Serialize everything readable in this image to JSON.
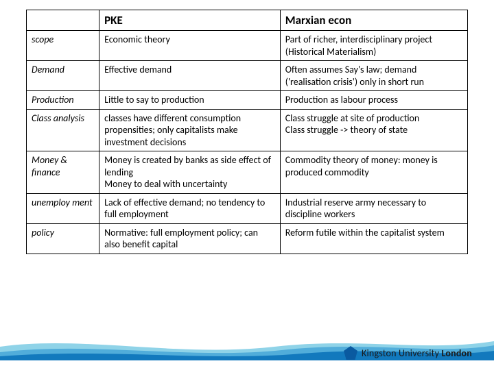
{
  "table": {
    "headers": [
      "",
      "PKE",
      "Marxian econ"
    ],
    "rows": [
      {
        "label": "scope",
        "pke": "Economic theory",
        "marx": "Part of richer, interdisciplinary project (Historical Materialism)"
      },
      {
        "label": "Demand",
        "pke": "Effective demand",
        "marx": "Often assumes Say's law; demand ('realisation crisis') only in short run"
      },
      {
        "label": "Production",
        "pke": "Little to say to production",
        "marx": "Production as labour process"
      },
      {
        "label": "Class analysis",
        "pke": "classes have different consumption propensities; only capitalists make investment decisions",
        "marx": "Class struggle at site of production\nClass struggle -> theory of state"
      },
      {
        "label": "Money & finance",
        "pke": "Money is created by banks as side effect of lending\nMoney to deal with uncertainty",
        "marx": "Commodity theory of money: money is produced commodity"
      },
      {
        "label": "unemploy ment",
        "pke": "Lack of effective demand; no tendency to full employment",
        "marx": "Industrial reserve army necessary to discipline workers"
      },
      {
        "label": "policy",
        "pke": "Normative: full employment policy; can also benefit capital",
        "marx": "Reform futile within the capitalist system"
      }
    ]
  },
  "footer": {
    "logo_text_prefix": "Kingston University",
    "logo_text_suffix": "London",
    "wave_colors": [
      "#8fd3e8",
      "#4aa8d8",
      "#1279bd"
    ]
  }
}
